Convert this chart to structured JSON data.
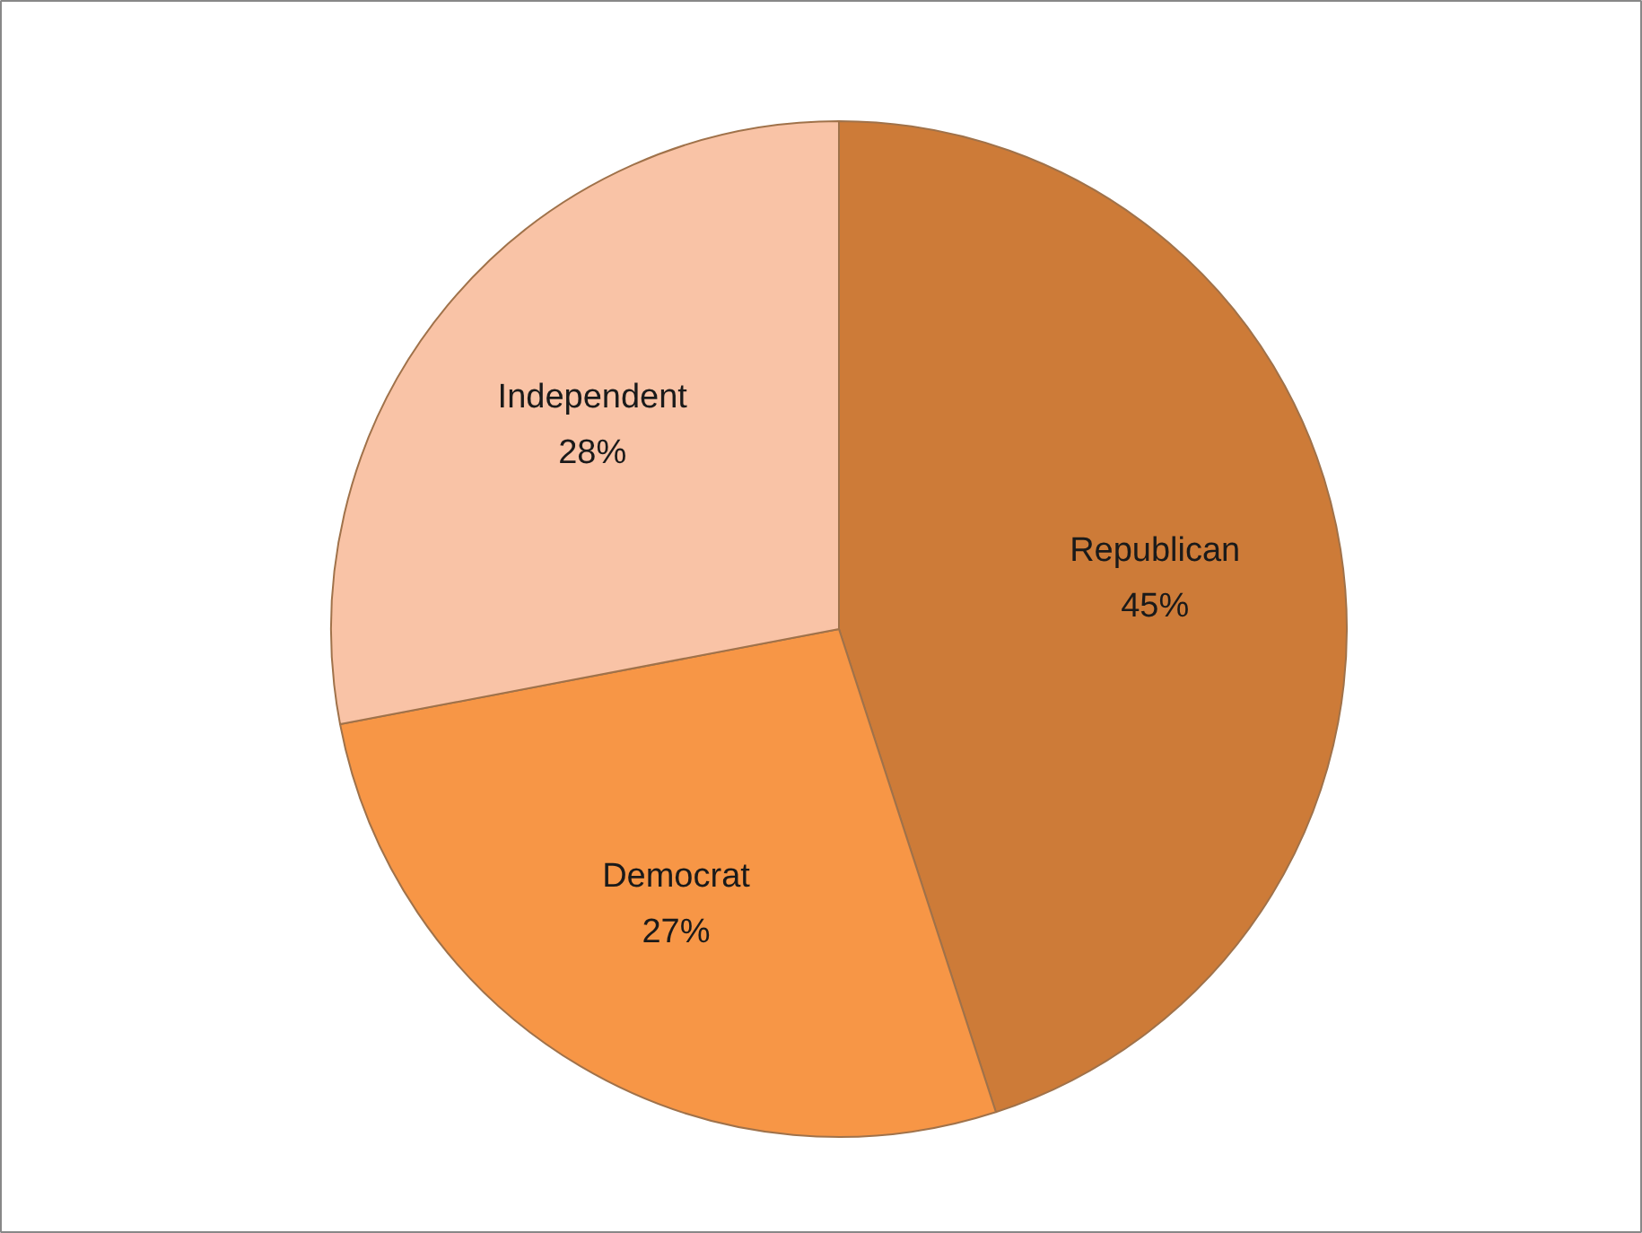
{
  "chart_data": {
    "type": "pie",
    "categories": [
      "Republican",
      "Democrat",
      "Independent"
    ],
    "values": [
      45,
      27,
      28
    ],
    "value_labels": [
      "45%",
      "27%",
      "28%"
    ],
    "colors": [
      "#cd7b38",
      "#f79646",
      "#f9c3a6"
    ]
  }
}
